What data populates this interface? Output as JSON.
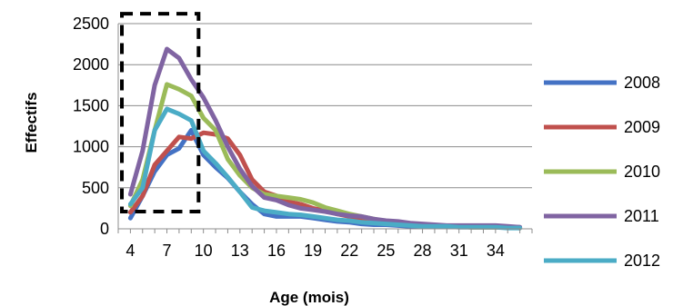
{
  "chart_data": {
    "type": "line",
    "title": "",
    "xlabel": "Age (mois)",
    "ylabel": "Effectifs",
    "x": [
      4,
      5,
      6,
      7,
      8,
      9,
      10,
      11,
      12,
      13,
      14,
      15,
      16,
      17,
      18,
      19,
      20,
      21,
      22,
      23,
      24,
      25,
      26,
      27,
      28,
      29,
      30,
      31,
      32,
      33,
      34,
      35,
      36
    ],
    "x_tick_labels": [
      "4",
      "7",
      "10",
      "13",
      "16",
      "19",
      "22",
      "25",
      "28",
      "31",
      "34"
    ],
    "y_tick_labels": [
      "0",
      "500",
      "1000",
      "1500",
      "2000",
      "2500"
    ],
    "ylim": [
      0,
      2500
    ],
    "grid": "horizontal",
    "legend_position": "right",
    "annotation": "dashed rectangle highlighting ages 3 to 10 months",
    "series": [
      {
        "name": "2008",
        "color": "#4472C4",
        "values": [
          130,
          400,
          700,
          900,
          980,
          1200,
          900,
          750,
          620,
          450,
          300,
          180,
          150,
          150,
          150,
          130,
          110,
          90,
          80,
          60,
          50,
          50,
          40,
          30,
          30,
          30,
          30,
          30,
          30,
          30,
          30,
          20,
          20
        ]
      },
      {
        "name": "2009",
        "color": "#C0504D",
        "values": [
          200,
          400,
          780,
          950,
          1120,
          1100,
          1170,
          1150,
          1100,
          900,
          600,
          450,
          400,
          330,
          300,
          250,
          220,
          180,
          150,
          130,
          110,
          80,
          70,
          60,
          50,
          40,
          30,
          30,
          20,
          20,
          20,
          20,
          10
        ]
      },
      {
        "name": "2010",
        "color": "#9BBB59",
        "values": [
          280,
          600,
          1200,
          1760,
          1700,
          1620,
          1350,
          1200,
          850,
          650,
          500,
          420,
          400,
          380,
          360,
          320,
          260,
          220,
          180,
          150,
          120,
          90,
          80,
          60,
          50,
          40,
          30,
          30,
          20,
          20,
          20,
          20,
          10
        ]
      },
      {
        "name": "2011",
        "color": "#8064A2",
        "values": [
          420,
          950,
          1750,
          2190,
          2080,
          1820,
          1600,
          1320,
          1000,
          730,
          520,
          380,
          350,
          290,
          250,
          230,
          210,
          180,
          160,
          150,
          120,
          100,
          90,
          70,
          60,
          50,
          40,
          40,
          40,
          40,
          40,
          30,
          20
        ]
      },
      {
        "name": "2012",
        "color": "#4BACC6",
        "values": [
          300,
          500,
          1200,
          1460,
          1400,
          1320,
          950,
          800,
          630,
          450,
          260,
          220,
          200,
          180,
          170,
          150,
          130,
          110,
          100,
          80,
          70,
          60,
          50,
          40,
          30,
          30,
          30,
          20,
          20,
          20,
          20,
          10,
          10
        ]
      }
    ]
  }
}
